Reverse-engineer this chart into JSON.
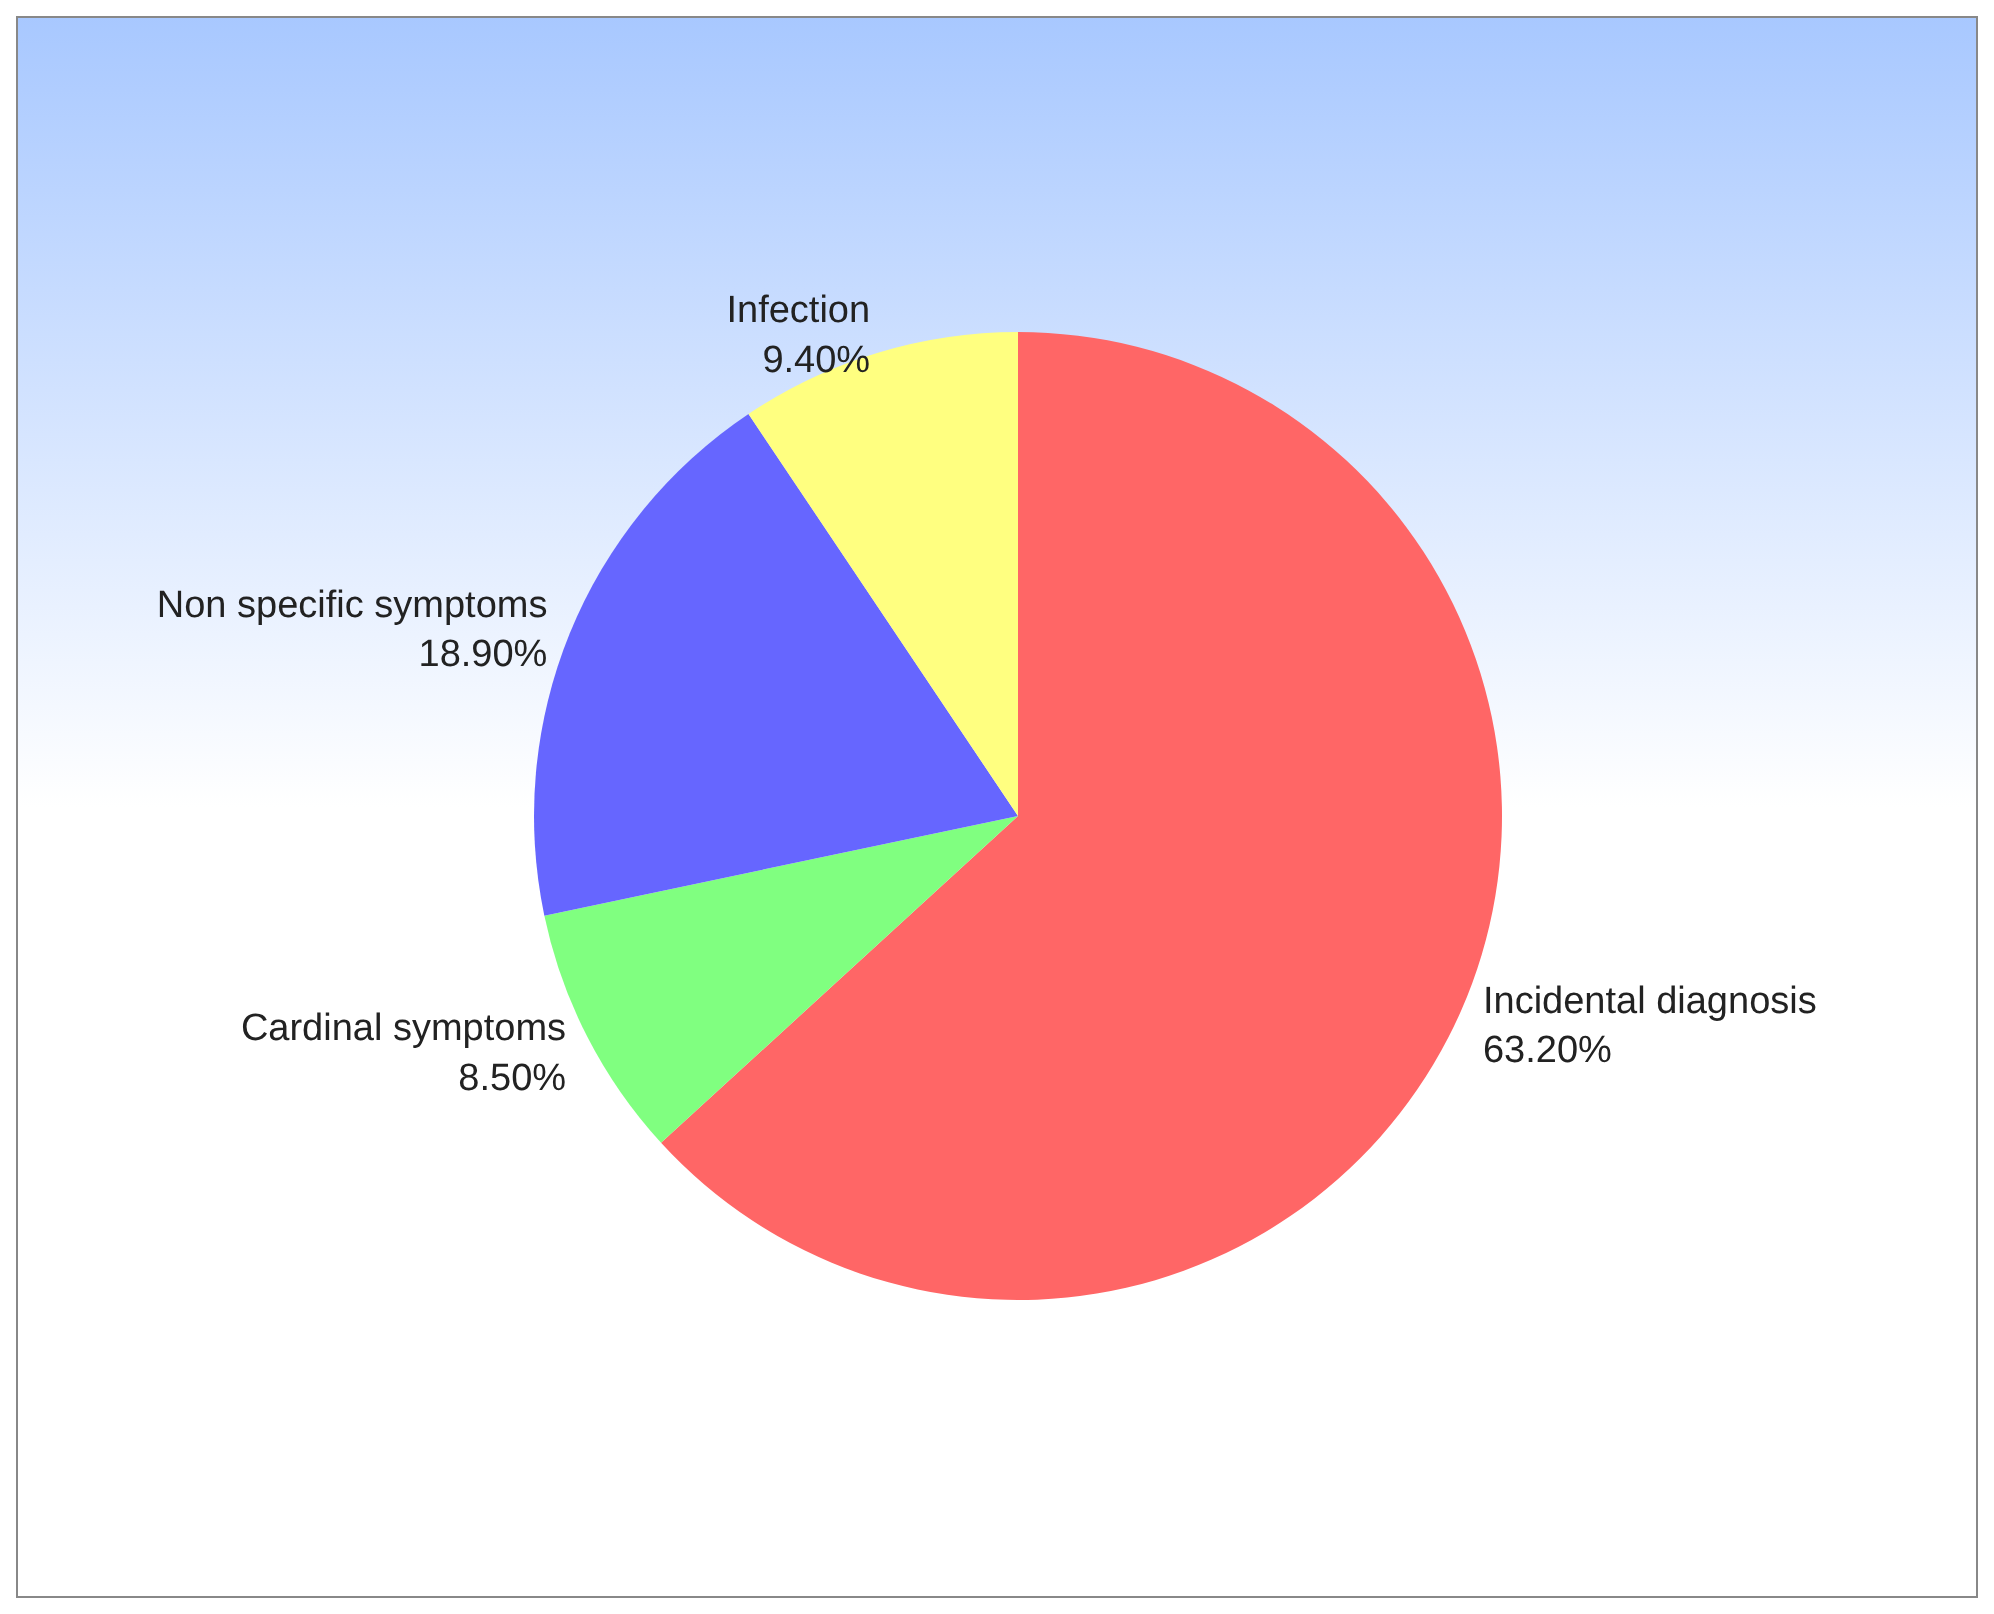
{
  "chart_data": {
    "type": "pie",
    "categories": [
      "Incidental diagnosis",
      "Cardinal symptoms",
      "Non specific symptoms",
      "Infection"
    ],
    "values": [
      63.2,
      8.5,
      18.9,
      9.4
    ],
    "colors": [
      "#ff6666",
      "#80ff80",
      "#6666ff",
      "#ffff80"
    ],
    "value_labels": [
      "63.20%",
      "8.50%",
      "18.90%",
      "9.40%"
    ]
  }
}
